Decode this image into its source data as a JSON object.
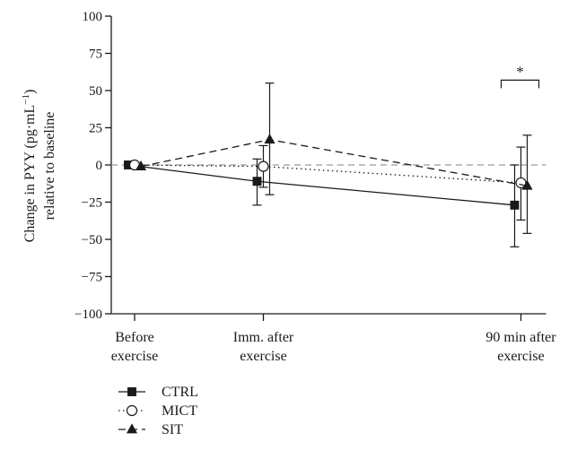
{
  "chart_data": {
    "type": "line",
    "ylabel_line1": "Change in PYY (pg·mL",
    "ylabel_sup": "−1",
    "ylabel_close": ")",
    "ylabel_line2": "relative to baseline",
    "ylim": [
      -100,
      100
    ],
    "yticks": [
      100,
      75,
      50,
      25,
      0,
      -25,
      -50,
      -75,
      -100
    ],
    "ytick_labels": [
      "100",
      "75",
      "50",
      "25",
      "0",
      "−25",
      "−50",
      "−75",
      "−100"
    ],
    "categories": [
      [
        "Before",
        "exercise"
      ],
      [
        "Imm. after",
        "exercise"
      ],
      [
        "90 min after",
        "exercise"
      ]
    ],
    "x_positions": [
      0,
      1,
      3
    ],
    "reference_line": 0,
    "grid": false,
    "legend_position": "bottom-left",
    "series": [
      {
        "name": "CTRL",
        "marker": "filled-square",
        "line_style": "solid",
        "values": [
          0,
          -11,
          -27
        ],
        "error_low": [
          0,
          -27,
          -55
        ],
        "error_high": [
          0,
          4,
          0
        ]
      },
      {
        "name": "MICT",
        "marker": "open-circle",
        "line_style": "dotted",
        "values": [
          0,
          -1,
          -12
        ],
        "error_low": [
          0,
          -15,
          -37
        ],
        "error_high": [
          0,
          13,
          12
        ]
      },
      {
        "name": "SIT",
        "marker": "filled-triangle",
        "line_style": "dashed",
        "values": [
          -1,
          17,
          -14
        ],
        "error_low": [
          -1,
          -20,
          -46
        ],
        "error_high": [
          -1,
          55,
          20
        ]
      }
    ],
    "annotations": [
      {
        "text": "*",
        "category_index": 2,
        "y_value": 57
      }
    ],
    "colors": {
      "line": "#1a1a1a",
      "reference": "#9a9a9a",
      "marker_fill": "#1a1a1a",
      "open_marker_fill": "#ffffff"
    }
  }
}
